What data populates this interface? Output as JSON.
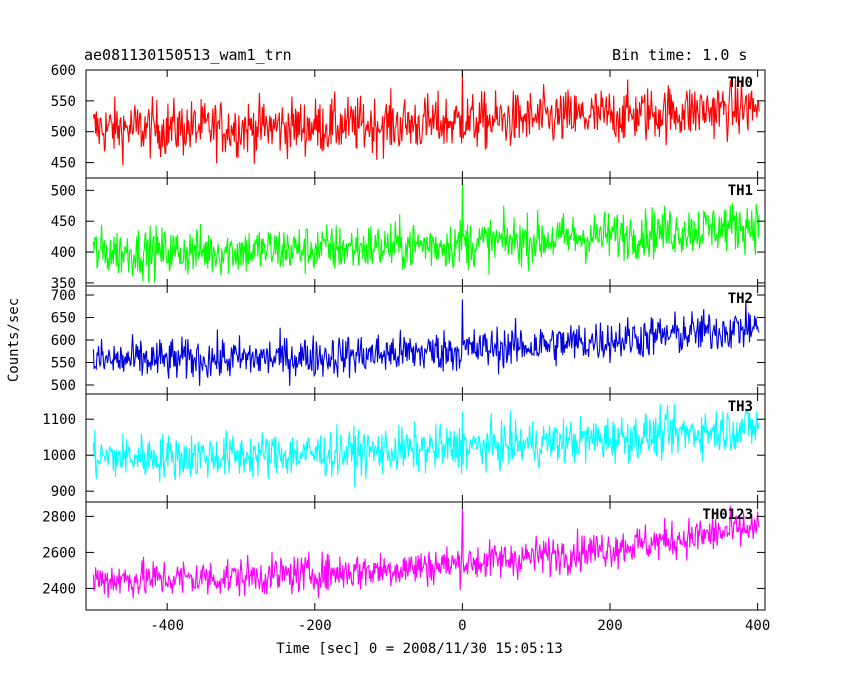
{
  "header": {
    "title": "ae081130150513_wam1_trn",
    "bin_time": "Bin time: 1.0 s"
  },
  "chart_data": {
    "type": "line",
    "title": "ae081130150513_wam1_trn",
    "xlabel": "Time [sec] 0 = 2008/11/30 15:05:13",
    "ylabel": "Counts/sec",
    "xlim": [
      -510,
      410
    ],
    "x_ticks": [
      -400,
      -200,
      0,
      200,
      400
    ],
    "grid": false,
    "panels": [
      {
        "name": "TH0",
        "color": "#ff0000",
        "ylim": [
          425,
          600
        ],
        "y_ticks": [
          450,
          500,
          550,
          600
        ],
        "start": 505,
        "end": 540,
        "noise": 32,
        "spike": 600
      },
      {
        "name": "TH1",
        "color": "#00ff00",
        "ylim": [
          345,
          520
        ],
        "y_ticks": [
          350,
          400,
          450,
          500
        ],
        "start": 400,
        "end": 445,
        "noise": 28,
        "spike": 520
      },
      {
        "name": "TH2",
        "color": "#0000dd",
        "ylim": [
          480,
          720
        ],
        "y_ticks": [
          500,
          550,
          600,
          650,
          700
        ],
        "start": 555,
        "end": 630,
        "noise": 33,
        "spike": 690
      },
      {
        "name": "TH3",
        "color": "#00ffff",
        "ylim": [
          870,
          1170
        ],
        "y_ticks": [
          900,
          1000,
          1100
        ],
        "start": 995,
        "end": 1080,
        "noise": 45,
        "spike": 1120
      },
      {
        "name": "TH0123",
        "color": "#ff00ff",
        "ylim": [
          2280,
          2880
        ],
        "y_ticks": [
          2400,
          2600,
          2800
        ],
        "start": 2450,
        "end": 2740,
        "noise": 75,
        "spike": 2840
      }
    ]
  }
}
